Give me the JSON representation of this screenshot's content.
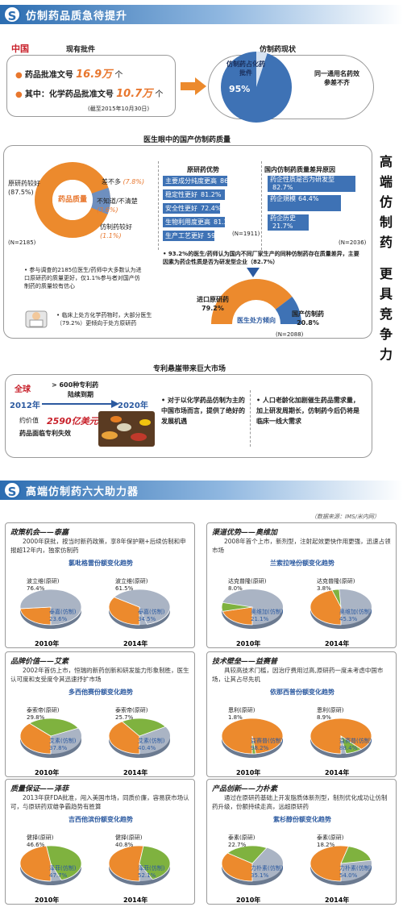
{
  "section1": {
    "title": "仿制药品质急待提升",
    "badge": "S"
  },
  "china_label": "中国",
  "current_approvals": {
    "heading": "现有批件",
    "line1_prefix": "药品批准文号",
    "line1_value": "16.9万",
    "line1_suffix": "个",
    "line2_prefix": "其中：化学药品批准文号",
    "line2_value": "10.7万",
    "line2_suffix": "个",
    "note": "(截至2015年10月30日)"
  },
  "generic_status": {
    "heading": "仿制药现状",
    "pie_label": "仿制药占化药批件",
    "pct": "95%",
    "side_text": "同一通用名药效参差不齐"
  },
  "vertical_slogan": [
    "高",
    "端",
    "仿",
    "制",
    "药",
    "更",
    "具",
    "竞",
    "争",
    "力"
  ],
  "quality": {
    "heading": "医生眼中的国产仿制药质量",
    "donut_center": "药品质量",
    "original_better": "原研药较好",
    "original_pct": "(87.5%)",
    "similar": "差不多",
    "similar_pct": "(7.8%)",
    "unknown": "不知道/不清楚",
    "unknown_pct": "(3.6%)",
    "generic_better": "仿制药较好",
    "generic_pct": "(1.1%)",
    "n": "(N=2185)",
    "note1": "• 参与调查的2185位医生/药师中大多数认为进口原研药的质量更好，仅1.1%参与者对国产仿制药的质量较有信心",
    "note2": "• 临床上处方化学药物时，大部分医生（79.2%）更倾向于处方原研药"
  },
  "advantages": {
    "heading": "原研药优势",
    "bars": [
      {
        "label": "主要成分纯度更高",
        "value": "86.3%",
        "pct": 86.3
      },
      {
        "label": "稳定性更好",
        "value": "81.2%",
        "pct": 81.2
      },
      {
        "label": "安全性更好",
        "value": "72.4%",
        "pct": 72.4
      },
      {
        "label": "生物利用度更高",
        "value": "81.2%",
        "pct": 81.2
      },
      {
        "label": "生产工艺更好",
        "value": "59.8%",
        "pct": 59.8
      }
    ],
    "n": "(N=1911)"
  },
  "reasons": {
    "heading": "国内仿制药质量差异原因",
    "bars": [
      {
        "label": "药企性质是否为研发型",
        "value": "82.7%",
        "pct": 82.7
      },
      {
        "label": "药企規模",
        "value": "64.4%",
        "pct": 64.4
      },
      {
        "label": "药企历史",
        "value": "21.7%",
        "pct": 21.7
      }
    ],
    "n": "(N=2036)",
    "note": "• 93.2%的医生/药师认为国内不同厂家生产的同种仿制药存在质量差异，主要因素为药企性质是否为研发型企业（82.7%）"
  },
  "prescription": {
    "center": "医生处方倾向",
    "import_label": "进口原研药",
    "import_pct": "79.2%",
    "domestic_label": "国产仿制药",
    "domestic_pct": "20.8%",
    "n": "(N=2088)",
    "import_value": 79.2,
    "domestic_value": 20.8
  },
  "patent": {
    "heading": "专利悬崖带来巨大市场",
    "global": "全球",
    "year_start": "2012年",
    "year_end": "2020年",
    "arrow_text1": "> 600种专利药",
    "arrow_text2": "陆续到期",
    "about": "约价值",
    "amount": "2590亿美元",
    "expire": "药品面临专利失效",
    "bullet1": "• 对于以化学药品仿制为主的中国市场而言，提供了绝好的发展机遇",
    "bullet2": "• 人口老龄化加剧催生药品需求量，加上研发周期长，仿制药今后仍将是临床一线大需求"
  },
  "section2": {
    "title": "高端仿制药六大助力器",
    "badge": "S",
    "source": "（数据来源：IMS/米内网）"
  },
  "cards": [
    {
      "title": "政策机会——泰嘉",
      "desc": "2000年获批，按当时新药政策，享8年保护期+后续仿制和申报超12年内，独家仿制药",
      "chart_title": "氯吡格雷份额变化趋势",
      "pies": [
        {
          "year": "2010年",
          "generic_label": "泰嘉(仿制)",
          "generic_pct": "23.6%",
          "original_label": "波立维(原研)",
          "original_pct": "76.4%",
          "generic": 23.6
        },
        {
          "year": "2014年",
          "generic_label": "泰嘉(仿制)",
          "generic_pct": "34.5%",
          "original_label": "波立维(原研)",
          "original_pct": "61.5%",
          "generic": 34.5
        }
      ]
    },
    {
      "title": "渠道优势——奥维加",
      "desc": "2008年首个上市，新剂型，注射起效更快作用更强，迅速占领市场",
      "chart_title": "兰索拉唑份额变化趋势",
      "pies": [
        {
          "year": "2010年",
          "original_label": "达克普隆(原研)",
          "original_pct": "8.0%",
          "generic_label": "奥维加(仿制)",
          "generic_pct": "21.1%",
          "generic": 21.1
        },
        {
          "year": "2014年",
          "original_label": "达克普隆(原研)",
          "original_pct": "3.8%",
          "generic_label": "奥维加(仿制)",
          "generic_pct": "45.3%",
          "generic": 45.3
        }
      ]
    },
    {
      "title": "品牌价值——艾素",
      "desc": "2002年首仿上市，恒瑞的新药创新和研发能力形象制胜，医生认可度和支受度令其迅速抒扩市场",
      "chart_title": "多西他赛份额变化趋势",
      "pies": [
        {
          "year": "2010年",
          "original_label": "泰索帝(原研)",
          "original_pct": "29.8%",
          "generic_label": "艾素(仿制)",
          "generic_pct": "37.8%",
          "generic": 37.8
        },
        {
          "year": "2014年",
          "original_label": "泰索帝(原研)",
          "original_pct": "25.7%",
          "generic_label": "艾素(仿制)",
          "generic_pct": "40.4%",
          "generic": 40.4
        }
      ]
    },
    {
      "title": "技术壁垒——益赛普",
      "desc": "具较高技术门槛，因治疗费用过高,原研药一度未考虑中国市场，让其占尽先机",
      "chart_title": "依那西普份额变化趋势",
      "pies": [
        {
          "year": "2010年",
          "original_label": "恩利(原研)",
          "original_pct": "1.8%",
          "generic_label": "益赛普(仿制)",
          "generic_pct": "98.2%",
          "generic": 98.2
        },
        {
          "year": "2014年",
          "original_label": "恩利(原研)",
          "original_pct": "8.9%",
          "generic_label": "益赛普(仿制)",
          "generic_pct": "88.4%",
          "generic": 88.4
        }
      ]
    },
    {
      "title": "质量保证——泽菲",
      "desc": "2013年获FDA批准，闯入美国市场，同质价廉，容易获市场认可，与原研药双雄争霸趋势有胜算",
      "chart_title": "吉西他滨份额变化趋势",
      "pies": [
        {
          "year": "2010年",
          "original_label": "健择(原研)",
          "original_pct": "46.6%",
          "generic_label": "泽菲(仿制)",
          "generic_pct": "47.7%",
          "generic": 47.7
        },
        {
          "year": "2014年",
          "original_label": "健择(原研)",
          "original_pct": "40.8%",
          "generic_label": "泽菲(仿制)",
          "generic_pct": "52.1%",
          "generic": 52.1
        }
      ]
    },
    {
      "title": "产品创新——力朴素",
      "desc": "通过在原研药基础上开发脂质体新剂型，制剂优化成功让仿制药升级，份额持续走高，远超原研药",
      "chart_title": "紫杉醇份额变化趋势",
      "pies": [
        {
          "year": "2010年",
          "original_label": "泰素(原研)",
          "original_pct": "22.7%",
          "generic_label": "力朴素(仿制)",
          "generic_pct": "35.1%",
          "generic": 35.1
        },
        {
          "year": "2014年",
          "original_label": "泰素(原研)",
          "original_pct": "18.2%",
          "generic_label": "力朴素(仿制)",
          "generic_pct": "54.0%",
          "generic": 54.0
        }
      ]
    }
  ],
  "colors": {
    "blue": "#3e72b5",
    "orange": "#ec8a2d",
    "green": "#7fb23f",
    "grey": "#aab4c4",
    "red": "#c8202a"
  }
}
